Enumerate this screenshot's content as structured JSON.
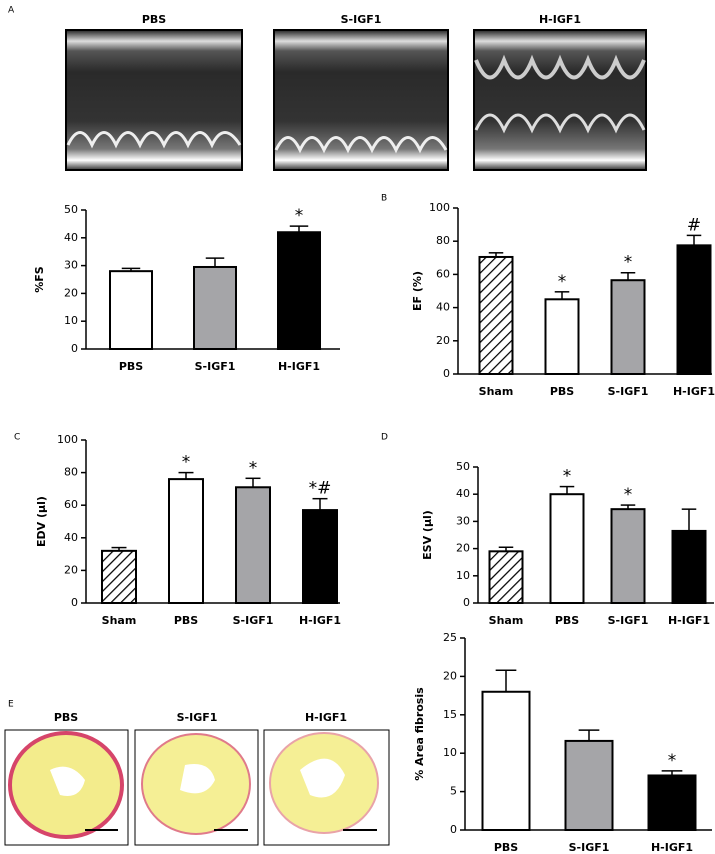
{
  "panel_labels": [
    "A",
    "B",
    "C",
    "D",
    "E"
  ],
  "echo_images": [
    "PBS",
    "S-IGF1",
    "H-IGF1"
  ],
  "histology_images": [
    "PBS",
    "S-IGF1",
    "H-IGF1"
  ],
  "chart_data": [
    {
      "type": "bar",
      "ylabel": "%FS",
      "categories": [
        "PBS",
        "S-IGF1",
        "H-IGF1"
      ],
      "values": [
        28,
        29.5,
        42
      ],
      "errors": [
        1,
        3.2,
        2.2
      ],
      "annotations": [
        null,
        null,
        "*"
      ],
      "colors": [
        "#ffffff",
        "#a5a5a8",
        "#000000"
      ],
      "hatched": [
        false,
        false,
        false
      ],
      "ylim": [
        0,
        50
      ],
      "yticks": [
        0,
        10,
        20,
        30,
        40,
        50
      ]
    },
    {
      "type": "bar",
      "ylabel": "EF (%)",
      "categories": [
        "Sham",
        "PBS",
        "S-IGF1",
        "H-IGF1"
      ],
      "values": [
        70.5,
        45,
        56.5,
        77.5
      ],
      "errors": [
        2.5,
        4.5,
        4.5,
        6
      ],
      "annotations": [
        null,
        "*",
        "*",
        "#"
      ],
      "colors": [
        "#ffffff",
        "#ffffff",
        "#a5a5a8",
        "#000000"
      ],
      "hatched": [
        true,
        false,
        false,
        false
      ],
      "ylim": [
        0,
        100
      ],
      "yticks": [
        0,
        20,
        40,
        60,
        80,
        100
      ]
    },
    {
      "type": "bar",
      "ylabel": "EDV (μl)",
      "categories": [
        "Sham",
        "PBS",
        "S-IGF1",
        "H-IGF1"
      ],
      "values": [
        32,
        76,
        71,
        57
      ],
      "errors": [
        2,
        4,
        5.5,
        7
      ],
      "annotations": [
        null,
        "*",
        "*",
        "*#"
      ],
      "colors": [
        "#ffffff",
        "#ffffff",
        "#a5a5a8",
        "#000000"
      ],
      "hatched": [
        true,
        false,
        false,
        false
      ],
      "ylim": [
        0,
        100
      ],
      "yticks": [
        0,
        20,
        40,
        60,
        80,
        100
      ]
    },
    {
      "type": "bar",
      "ylabel": "ESV (μl)",
      "categories": [
        "Sham",
        "PBS",
        "S-IGF1",
        "H-IGF1"
      ],
      "values": [
        19,
        40,
        34.5,
        26.5
      ],
      "errors": [
        1.5,
        2.8,
        1.5,
        8
      ],
      "annotations": [
        null,
        "*",
        "*",
        null
      ],
      "colors": [
        "#ffffff",
        "#ffffff",
        "#a5a5a8",
        "#000000"
      ],
      "hatched": [
        true,
        false,
        false,
        false
      ],
      "ylim": [
        0,
        50
      ],
      "yticks": [
        0,
        10,
        20,
        30,
        40,
        50
      ]
    },
    {
      "type": "bar",
      "ylabel": "% Area fibrosis",
      "categories": [
        "PBS",
        "S-IGF1",
        "H-IGF1"
      ],
      "values": [
        18,
        11.6,
        7.1
      ],
      "errors": [
        2.8,
        1.4,
        0.6
      ],
      "annotations": [
        null,
        null,
        "*"
      ],
      "colors": [
        "#ffffff",
        "#a5a5a8",
        "#000000"
      ],
      "hatched": [
        false,
        false,
        false
      ],
      "ylim": [
        0,
        25
      ],
      "yticks": [
        0,
        5,
        10,
        15,
        20,
        25
      ]
    }
  ]
}
